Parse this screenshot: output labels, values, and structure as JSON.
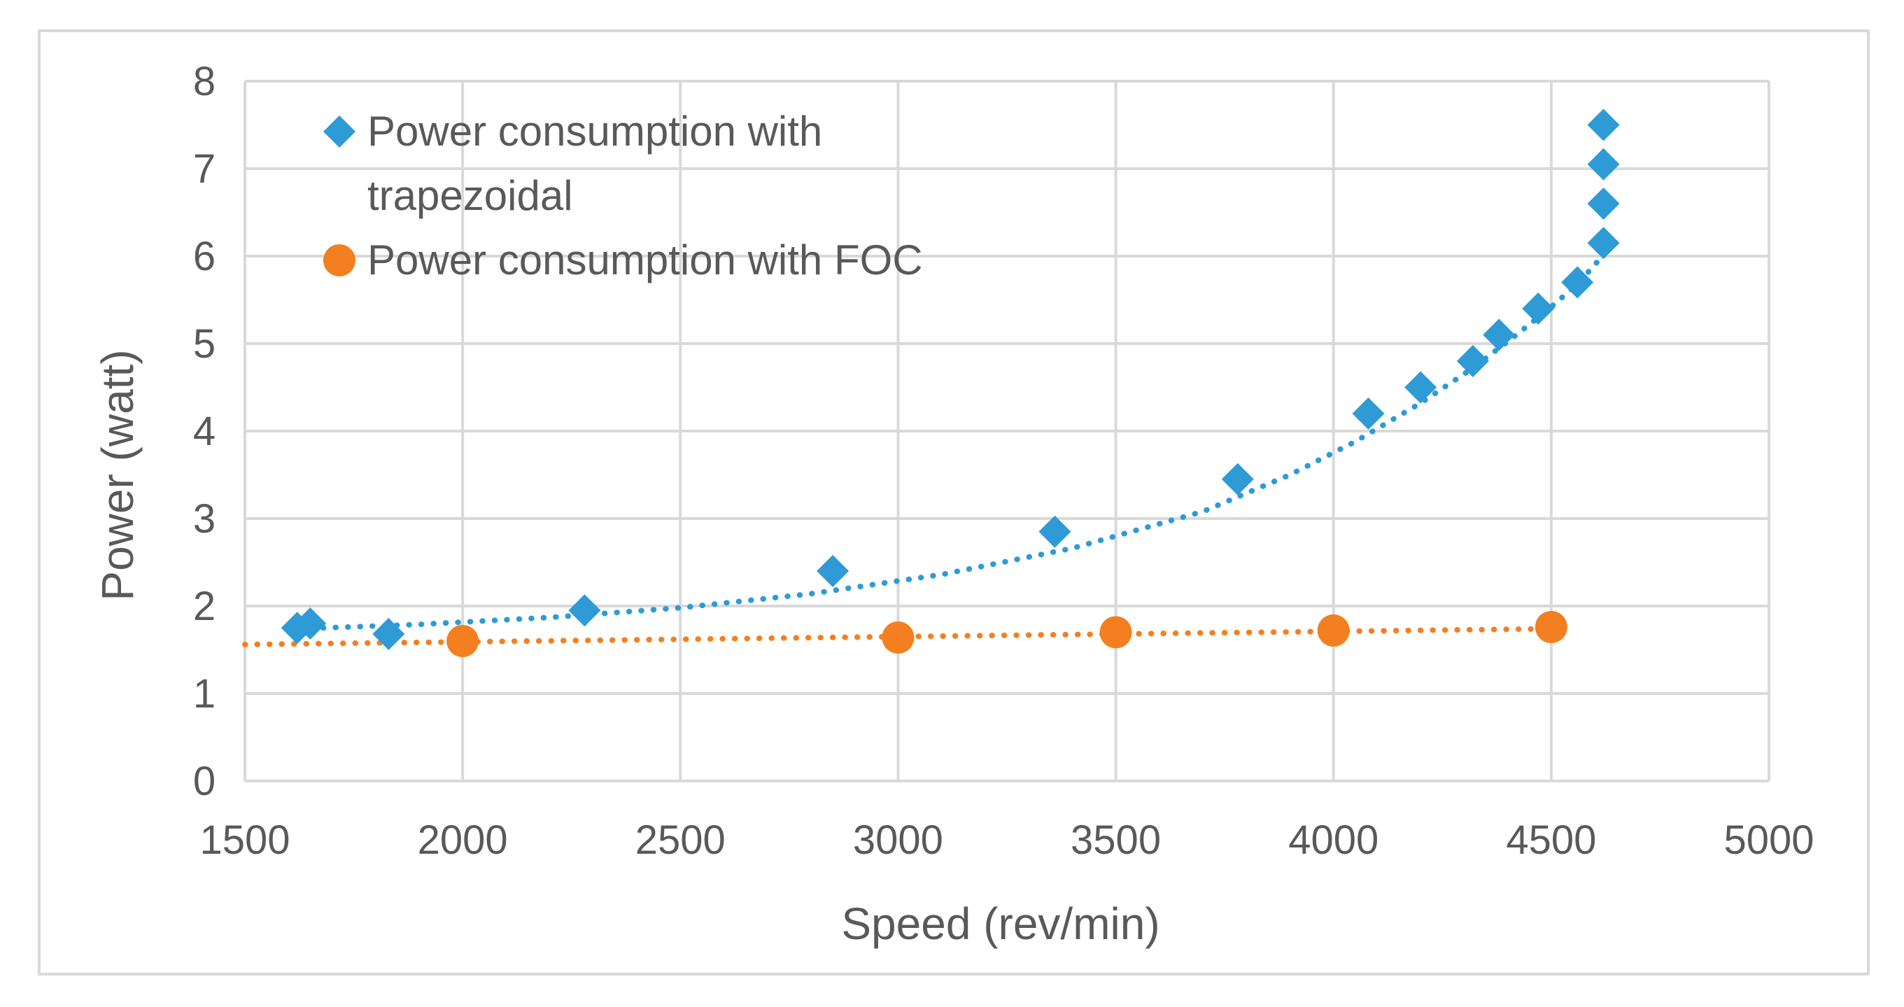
{
  "chart_data": {
    "type": "scatter",
    "title": "",
    "xlabel": "Speed (rev/min)",
    "ylabel": "Power (watt)",
    "xlim": [
      1500,
      5000
    ],
    "ylim": [
      0,
      8
    ],
    "x_ticks": [
      1500,
      2000,
      2500,
      3000,
      3500,
      4000,
      4500,
      5000
    ],
    "y_ticks": [
      0,
      1,
      2,
      3,
      4,
      5,
      6,
      7,
      8
    ],
    "grid": true,
    "legend_position": "top-left",
    "series": [
      {
        "name": "Power consumption with trapezoidal",
        "legend_lines": [
          "Power consumption with",
          "trapezoidal"
        ],
        "marker": "diamond",
        "color": "#2E9BD6",
        "x": [
          1620,
          1650,
          1830,
          2280,
          2850,
          3360,
          3780,
          4080,
          4200,
          4320,
          4380,
          4470,
          4560,
          4620,
          4620,
          4620,
          4620
        ],
        "y": [
          1.75,
          1.8,
          1.68,
          1.95,
          2.4,
          2.85,
          3.45,
          4.2,
          4.5,
          4.8,
          5.1,
          5.4,
          5.7,
          6.15,
          6.6,
          7.05,
          7.5
        ],
        "trendline": {
          "style": "dotted",
          "x": [
            1680,
            1900,
            2200,
            2500,
            2800,
            3100,
            3400,
            3700,
            3900,
            4050,
            4200,
            4320,
            4420,
            4500,
            4560,
            4600,
            4625
          ],
          "y": [
            1.75,
            1.79,
            1.87,
            1.98,
            2.14,
            2.36,
            2.66,
            3.08,
            3.5,
            3.88,
            4.32,
            4.72,
            5.1,
            5.42,
            5.68,
            5.9,
            6.05
          ]
        }
      },
      {
        "name": "Power consumption with FOC",
        "legend_lines": [
          "Power consumption with FOC"
        ],
        "marker": "circle",
        "color": "#F47F20",
        "x": [
          2000,
          3000,
          3500,
          4000,
          4500
        ],
        "y": [
          1.6,
          1.64,
          1.7,
          1.72,
          1.76
        ],
        "trendline": {
          "style": "dotted",
          "x": [
            1500,
            4500
          ],
          "y": [
            1.56,
            1.74
          ]
        }
      }
    ]
  }
}
